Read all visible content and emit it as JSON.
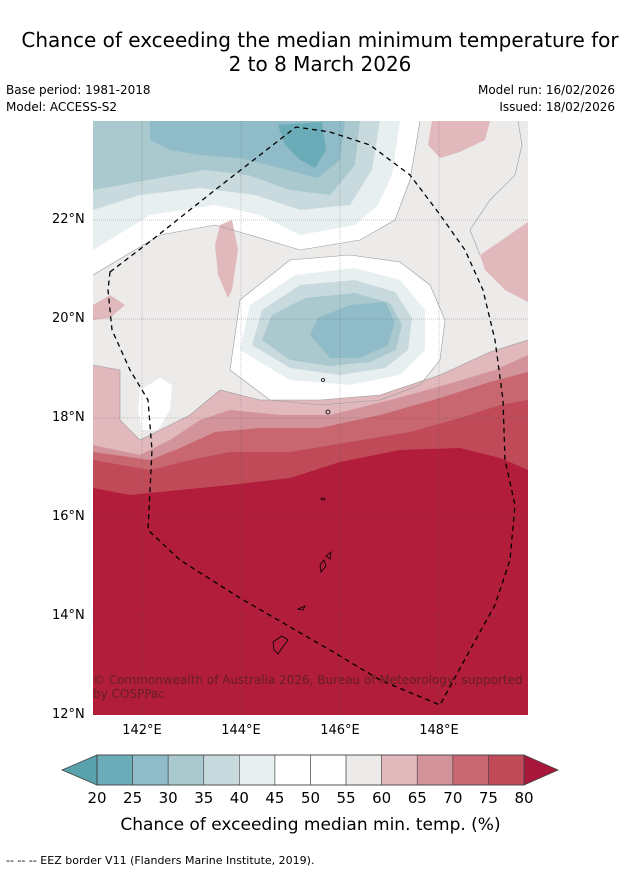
{
  "header": {
    "title_line1": "Chance of exceeding the median minimum temperature for",
    "title_line2": "2 to 8 March 2026",
    "base_period": "Base period: 1981-2018",
    "model": "Model: ACCESS-S2",
    "model_run": "Model run: 16/02/2026",
    "issued": "Issued: 18/02/2026"
  },
  "map": {
    "lat_labels": [
      "22°N",
      "20°N",
      "18°N",
      "16°N",
      "14°N",
      "12°N"
    ],
    "lon_labels": [
      "142°E",
      "144°E",
      "146°E",
      "148°E"
    ],
    "copyright": "© Commonwealth of Australia 2026, Bureau of Meteorology, supported by COSPPac",
    "colors": {
      "c20": "#6aadb8",
      "c25": "#8fbcc8",
      "c30": "#a9c9cf",
      "c35": "#c8dadd",
      "c40": "#e8eff1",
      "c45": "#ffffff",
      "c55": "#ecebea",
      "c60": "#e1b9bd",
      "c65": "#d3939a",
      "c70": "#c8676f",
      "c75": "#c04a58",
      "c80": "#b11d3a"
    }
  },
  "colorbar": {
    "ticks": [
      "20",
      "25",
      "30",
      "35",
      "40",
      "45",
      "50",
      "55",
      "60",
      "65",
      "70",
      "75",
      "80"
    ],
    "colors": [
      "#6aadb8",
      "#8fbcc8",
      "#a9c9cf",
      "#c8dadd",
      "#e8eff1",
      "#ffffff",
      "#ffffff",
      "#ecebea",
      "#e1b9bd",
      "#d3939a",
      "#c8676f",
      "#c04a58"
    ],
    "low_extend_color": "#58a2ae",
    "high_extend_color": "#a8173a",
    "label": "Chance of exceeding median min. temp. (%)"
  },
  "footer": {
    "legend": "--  --  -- EEZ border V11 (Flanders Marine Institute, 2019)."
  }
}
